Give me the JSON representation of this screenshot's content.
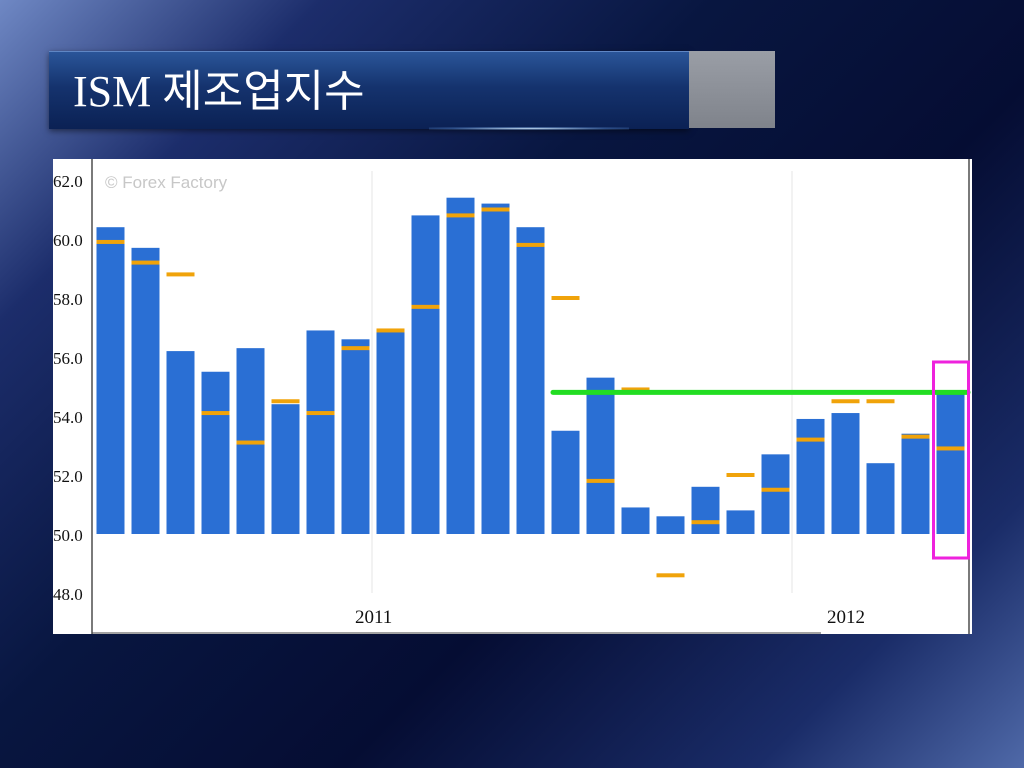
{
  "slide": {
    "title": "ISM 제조업지수"
  },
  "colors": {
    "bar": "#2a6fd4",
    "forecast": "#f0a30a",
    "threshold_line": "#22dd22",
    "highlight_box": "#ee22dd"
  },
  "chart_data": {
    "type": "bar",
    "watermark": "© Forex Factory",
    "ylim": [
      48,
      62
    ],
    "yticks": [
      "62.0",
      "60.0",
      "58.0",
      "56.0",
      "54.0",
      "52.0",
      "50.0",
      "48.0"
    ],
    "xlabels": [
      "2011",
      "2012"
    ],
    "series": [
      {
        "kind": "bars",
        "values": [
          60.4,
          59.7,
          56.2,
          55.5,
          56.3,
          54.4,
          56.9,
          56.6,
          56.9,
          60.8,
          61.4,
          61.2,
          60.4,
          53.5,
          55.3,
          50.9,
          50.6,
          51.6,
          50.8,
          52.7,
          53.9,
          54.1,
          52.4,
          53.4,
          54.8
        ]
      },
      {
        "kind": "forecast-markers",
        "values": [
          59.9,
          59.2,
          58.8,
          54.1,
          53.1,
          54.5,
          54.1,
          56.3,
          56.9,
          57.7,
          60.8,
          61.0,
          59.8,
          58.0,
          51.8,
          54.9,
          48.6,
          50.4,
          52.0,
          51.5,
          53.2,
          54.5,
          54.5,
          53.3,
          52.9
        ]
      }
    ],
    "reference_line": 54.8,
    "highlight_bar_index": 24
  }
}
